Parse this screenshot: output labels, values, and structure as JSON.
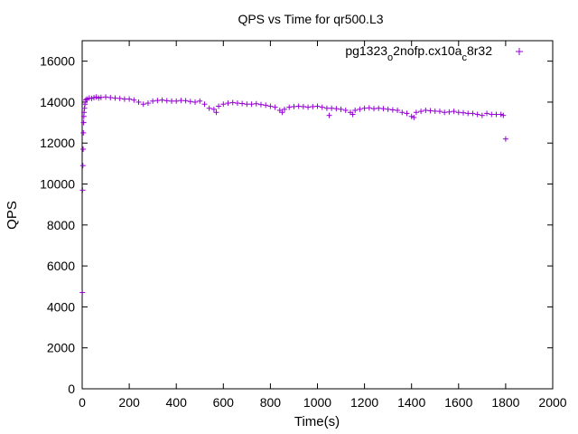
{
  "chart_data": {
    "type": "scatter",
    "title": "QPS vs Time for qr500.L3",
    "xlabel": "Time(s)",
    "ylabel": "QPS",
    "xlim": [
      0,
      2000
    ],
    "ylim": [
      0,
      17000
    ],
    "xticks": [
      0,
      200,
      400,
      600,
      800,
      1000,
      1200,
      1400,
      1600,
      1800,
      2000
    ],
    "yticks": [
      0,
      2000,
      4000,
      6000,
      8000,
      10000,
      12000,
      14000,
      16000
    ],
    "grid": false,
    "legend_position": "top-right",
    "marker": "+",
    "series": [
      {
        "name": "pg1323_o2nofp.cx10a_c8r32",
        "legend_parts": [
          "pg1323",
          "o",
          "2nofp.cx10a",
          "c",
          "8r32"
        ],
        "color": "#9400d3",
        "x": [
          1,
          2,
          3,
          4,
          5,
          6,
          7,
          8,
          10,
          12,
          15,
          20,
          30,
          40,
          50,
          60,
          70,
          80,
          100,
          120,
          140,
          160,
          180,
          200,
          220,
          240,
          260,
          280,
          300,
          320,
          340,
          360,
          380,
          400,
          420,
          440,
          460,
          480,
          500,
          520,
          540,
          560,
          570,
          580,
          600,
          620,
          640,
          660,
          680,
          700,
          720,
          740,
          760,
          780,
          800,
          820,
          840,
          850,
          860,
          880,
          900,
          920,
          940,
          960,
          980,
          1000,
          1020,
          1040,
          1050,
          1060,
          1080,
          1100,
          1120,
          1140,
          1150,
          1160,
          1180,
          1200,
          1220,
          1240,
          1260,
          1280,
          1300,
          1320,
          1340,
          1360,
          1380,
          1400,
          1410,
          1420,
          1440,
          1460,
          1480,
          1500,
          1520,
          1540,
          1560,
          1580,
          1600,
          1620,
          1640,
          1660,
          1680,
          1700,
          1720,
          1740,
          1760,
          1780,
          1790,
          1800
        ],
        "y": [
          4700,
          9700,
          10900,
          11700,
          12500,
          13000,
          13300,
          13500,
          13700,
          13900,
          14100,
          14150,
          14200,
          14180,
          14220,
          14250,
          14200,
          14230,
          14250,
          14220,
          14200,
          14180,
          14150,
          14150,
          14100,
          14000,
          13900,
          13950,
          14050,
          14080,
          14100,
          14070,
          14050,
          14050,
          14080,
          14070,
          14030,
          14000,
          14050,
          13900,
          13700,
          13650,
          13500,
          13800,
          13900,
          13950,
          13980,
          13950,
          13930,
          13900,
          13900,
          13920,
          13880,
          13850,
          13800,
          13750,
          13600,
          13500,
          13650,
          13750,
          13780,
          13800,
          13780,
          13750,
          13780,
          13800,
          13750,
          13700,
          13350,
          13700,
          13680,
          13650,
          13600,
          13500,
          13400,
          13600,
          13650,
          13700,
          13720,
          13680,
          13700,
          13680,
          13650,
          13620,
          13600,
          13500,
          13450,
          13300,
          13250,
          13500,
          13550,
          13600,
          13580,
          13560,
          13550,
          13500,
          13520,
          13550,
          13500,
          13480,
          13450,
          13450,
          13400,
          13350,
          13450,
          13400,
          13400,
          13400,
          13350,
          12200
        ]
      }
    ]
  }
}
